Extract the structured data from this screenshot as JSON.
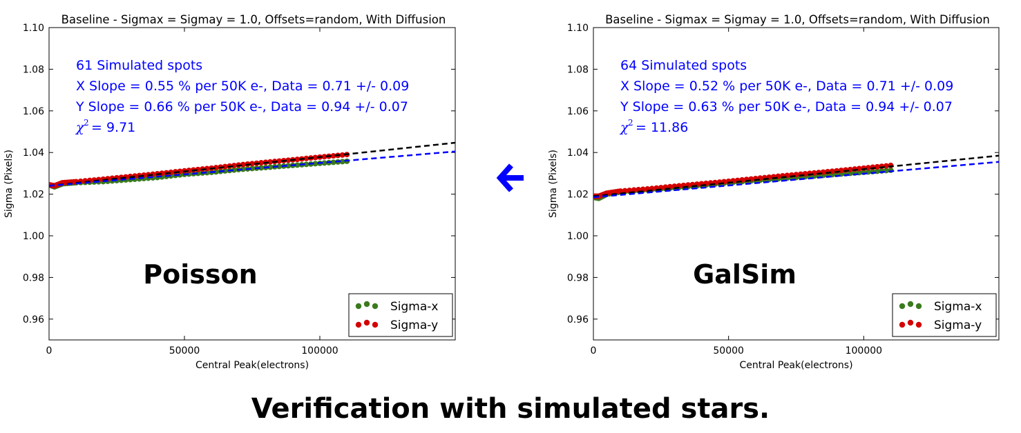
{
  "caption": "Verification with simulated stars.",
  "arrow_color": "#0000ff",
  "colors": {
    "sigma_x": "#3a7a1e",
    "sigma_y": "#d40000",
    "fit_x": "#0000ff",
    "fit_y": "#000000",
    "annotation": "#0000ff"
  },
  "chart_data": [
    {
      "type": "scatter",
      "title": "Baseline - Sigmax = Sigmay = 1.0, Offsets=random, With Diffusion",
      "xlabel": "Central Peak(electrons)",
      "ylabel": "Sigma (Pixels)",
      "xlim": [
        0,
        150000
      ],
      "ylim": [
        0.95,
        1.1
      ],
      "xticks": [
        0,
        50000,
        100000
      ],
      "yticks": [
        0.96,
        0.98,
        1.0,
        1.02,
        1.04,
        1.06,
        1.08,
        1.1
      ],
      "grid": false,
      "legend_position": "bottom-right",
      "big_label": "Poisson",
      "annotations": [
        "61 Simulated spots",
        "X Slope = 0.55 % per 50K e-, Data = 0.71 +/- 0.09",
        "Y Slope = 0.66 % per 50K e-, Data = 0.94 +/- 0.07"
      ],
      "chi2_label": "χ",
      "chi2_value": "= 9.71",
      "series": [
        {
          "name": "Sigma-x",
          "x": [
            0,
            2000,
            5000,
            10000,
            20000,
            30000,
            40000,
            50000,
            60000,
            70000,
            80000,
            90000,
            100000,
            110000
          ],
          "y": [
            1.0245,
            1.0235,
            1.025,
            1.0255,
            1.026,
            1.027,
            1.028,
            1.0295,
            1.0305,
            1.0318,
            1.0328,
            1.0338,
            1.0348,
            1.0358
          ]
        },
        {
          "name": "Sigma-y",
          "x": [
            0,
            2000,
            5000,
            10000,
            20000,
            30000,
            40000,
            50000,
            60000,
            70000,
            80000,
            90000,
            100000,
            110000
          ],
          "y": [
            1.0245,
            1.024,
            1.0255,
            1.026,
            1.0272,
            1.0285,
            1.0298,
            1.0312,
            1.0325,
            1.034,
            1.0353,
            1.0365,
            1.0378,
            1.039
          ]
        }
      ],
      "fits": [
        {
          "color": "#000000",
          "x": [
            0,
            150000
          ],
          "y": [
            1.024,
            1.0447
          ]
        },
        {
          "color": "#0000ff",
          "x": [
            0,
            150000
          ],
          "y": [
            1.024,
            1.0405
          ]
        }
      ]
    },
    {
      "type": "scatter",
      "title": "Baseline - Sigmax = Sigmay = 1.0, Offsets=random, With Diffusion",
      "xlabel": "Central Peak(electrons)",
      "ylabel": "Sigma (Pixels)",
      "xlim": [
        0,
        150000
      ],
      "ylim": [
        0.95,
        1.1
      ],
      "xticks": [
        0,
        50000,
        100000
      ],
      "yticks": [
        0.96,
        0.98,
        1.0,
        1.02,
        1.04,
        1.06,
        1.08,
        1.1
      ],
      "grid": false,
      "legend_position": "bottom-right",
      "big_label": "GalSim",
      "annotations": [
        "64 Simulated spots",
        "X Slope = 0.52 % per 50K e-, Data = 0.71 +/- 0.09",
        "Y Slope = 0.63 % per 50K e-, Data = 0.94 +/- 0.07"
      ],
      "chi2_label": "χ",
      "chi2_value": "= 11.86",
      "series": [
        {
          "name": "Sigma-x",
          "x": [
            0,
            2000,
            5000,
            10000,
            20000,
            30000,
            40000,
            50000,
            60000,
            70000,
            80000,
            90000,
            100000,
            110000
          ],
          "y": [
            1.0185,
            1.018,
            1.02,
            1.021,
            1.022,
            1.023,
            1.0242,
            1.0255,
            1.0265,
            1.0275,
            1.0285,
            1.0295,
            1.0305,
            1.0315
          ]
        },
        {
          "name": "Sigma-y",
          "x": [
            0,
            2000,
            5000,
            10000,
            20000,
            30000,
            40000,
            50000,
            60000,
            70000,
            80000,
            90000,
            100000,
            110000
          ],
          "y": [
            1.019,
            1.019,
            1.0205,
            1.0215,
            1.0225,
            1.0238,
            1.025,
            1.0262,
            1.0275,
            1.0288,
            1.03,
            1.0312,
            1.0325,
            1.0338
          ]
        }
      ],
      "fits": [
        {
          "color": "#000000",
          "x": [
            0,
            150000
          ],
          "y": [
            1.019,
            1.0385
          ]
        },
        {
          "color": "#0000ff",
          "x": [
            0,
            150000
          ],
          "y": [
            1.0185,
            1.0355
          ]
        }
      ]
    }
  ]
}
